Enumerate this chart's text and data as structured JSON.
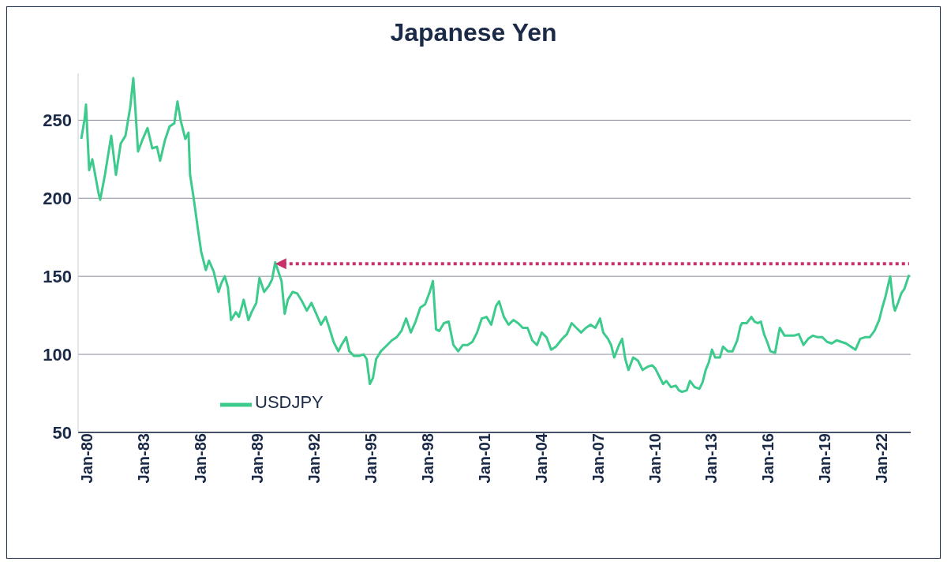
{
  "chart_data": {
    "type": "line",
    "title": "Japanese Yen",
    "x": [
      "1980-01",
      "1980-03",
      "1980-04",
      "1980-06",
      "1980-08",
      "1980-12",
      "1981-01",
      "1981-04",
      "1981-08",
      "1981-11",
      "1982-02",
      "1982-05",
      "1982-08",
      "1982-10",
      "1982-11",
      "1983-01",
      "1983-04",
      "1983-07",
      "1983-10",
      "1984-01",
      "1984-03",
      "1984-06",
      "1984-09",
      "1984-12",
      "1985-02",
      "1985-04",
      "1985-07",
      "1985-09",
      "1985-10",
      "1985-12",
      "1986-03",
      "1986-05",
      "1986-08",
      "1986-10",
      "1987-01",
      "1987-04",
      "1987-06",
      "1987-08",
      "1987-10",
      "1987-12",
      "1988-03",
      "1988-05",
      "1988-08",
      "1988-11",
      "1989-01",
      "1989-04",
      "1989-06",
      "1989-09",
      "1989-12",
      "1990-02",
      "1990-04",
      "1990-06",
      "1990-08",
      "1990-10",
      "1990-12",
      "1991-03",
      "1991-06",
      "1991-09",
      "1991-12",
      "1992-03",
      "1992-06",
      "1992-09",
      "1992-12",
      "1993-02",
      "1993-05",
      "1993-08",
      "1993-10",
      "1994-01",
      "1994-03",
      "1994-06",
      "1994-09",
      "1994-12",
      "1995-02",
      "1995-04",
      "1995-06",
      "1995-08",
      "1995-11",
      "1996-02",
      "1996-06",
      "1996-09",
      "1996-12",
      "1997-03",
      "1997-06",
      "1997-09",
      "1997-12",
      "1998-03",
      "1998-06",
      "1998-08",
      "1998-10",
      "1998-12",
      "1999-03",
      "1999-06",
      "1999-09",
      "1999-12",
      "2000-03",
      "2000-06",
      "2000-09",
      "2000-12",
      "2001-03",
      "2001-06",
      "2001-09",
      "2001-12",
      "2002-02",
      "2002-05",
      "2002-08",
      "2002-11",
      "2003-02",
      "2003-05",
      "2003-08",
      "2003-11",
      "2004-02",
      "2004-05",
      "2004-08",
      "2004-11",
      "2005-02",
      "2005-06",
      "2005-09",
      "2005-12",
      "2006-03",
      "2006-06",
      "2006-09",
      "2006-12",
      "2007-03",
      "2007-06",
      "2007-08",
      "2007-11",
      "2008-01",
      "2008-03",
      "2008-06",
      "2008-08",
      "2008-10",
      "2008-12",
      "2009-03",
      "2009-06",
      "2009-09",
      "2009-12",
      "2010-03",
      "2010-05",
      "2010-08",
      "2010-10",
      "2010-12",
      "2011-03",
      "2011-06",
      "2011-08",
      "2011-10",
      "2012-01",
      "2012-03",
      "2012-06",
      "2012-09",
      "2012-11",
      "2013-01",
      "2013-03",
      "2013-05",
      "2013-07",
      "2013-10",
      "2013-12",
      "2014-03",
      "2014-06",
      "2014-09",
      "2014-11",
      "2014-12",
      "2015-03",
      "2015-06",
      "2015-08",
      "2015-10",
      "2015-12",
      "2016-02",
      "2016-04",
      "2016-06",
      "2016-09",
      "2016-11",
      "2016-12",
      "2017-03",
      "2017-06",
      "2017-09",
      "2017-12",
      "2018-03",
      "2018-06",
      "2018-09",
      "2018-12",
      "2019-03",
      "2019-06",
      "2019-09",
      "2019-12",
      "2020-03",
      "2020-06",
      "2020-09",
      "2020-12",
      "2021-03",
      "2021-06",
      "2021-09",
      "2021-12",
      "2022-03",
      "2022-05",
      "2022-07",
      "2022-10",
      "2022-12",
      "2023-01",
      "2023-03",
      "2023-05",
      "2023-07",
      "2023-09",
      "2023-10"
    ],
    "series": [
      {
        "name": "USDJPY",
        "color": "#3ccb8c",
        "values": [
          238,
          250,
          260,
          218,
          225,
          203,
          199,
          215,
          240,
          215,
          235,
          240,
          258,
          277,
          262,
          230,
          238,
          245,
          232,
          233,
          224,
          237,
          246,
          248,
          262,
          250,
          238,
          242,
          215,
          202,
          180,
          166,
          154,
          160,
          153,
          140,
          146,
          150,
          143,
          122,
          127,
          124,
          135,
          122,
          127,
          133,
          149,
          140,
          144,
          148,
          159,
          153,
          147,
          126,
          135,
          140,
          139,
          134,
          128,
          133,
          126,
          119,
          124,
          118,
          108,
          102,
          106,
          111,
          102,
          99,
          99,
          100,
          97,
          81,
          85,
          97,
          102,
          105,
          109,
          111,
          115,
          123,
          114,
          121,
          130,
          132,
          140,
          147,
          116,
          115,
          120,
          121,
          106,
          102,
          106,
          106,
          108,
          114,
          123,
          124,
          119,
          131,
          134,
          124,
          119,
          122,
          120,
          117,
          117,
          109,
          106,
          114,
          111,
          103,
          105,
          110,
          113,
          120,
          117,
          114,
          117,
          119,
          117,
          123,
          114,
          110,
          106,
          98,
          106,
          110,
          97,
          90,
          98,
          96,
          90,
          92,
          93,
          91,
          85,
          81,
          83,
          79,
          80,
          77,
          76,
          77,
          83,
          79,
          78,
          82,
          90,
          95,
          103,
          98,
          98,
          105,
          102,
          102,
          109,
          118,
          120,
          120,
          124,
          121,
          120,
          121,
          113,
          108,
          102,
          101,
          112,
          117,
          112,
          112,
          112,
          113,
          106,
          110,
          112,
          111,
          111,
          108,
          107,
          109,
          108,
          107,
          105,
          103,
          110,
          111,
          111,
          115,
          122,
          130,
          137,
          150,
          132,
          128,
          133,
          139,
          142,
          148,
          151
        ]
      }
    ],
    "xlim": [
      "1979-11",
      "2023-11"
    ],
    "xticks": [
      {
        "value": "1980-01",
        "label": "Jan-80"
      },
      {
        "value": "1983-01",
        "label": "Jan-83"
      },
      {
        "value": "1986-01",
        "label": "Jan-86"
      },
      {
        "value": "1989-01",
        "label": "Jan-89"
      },
      {
        "value": "1992-01",
        "label": "Jan-92"
      },
      {
        "value": "1995-01",
        "label": "Jan-95"
      },
      {
        "value": "1998-01",
        "label": "Jan-98"
      },
      {
        "value": "2001-01",
        "label": "Jan-01"
      },
      {
        "value": "2004-01",
        "label": "Jan-04"
      },
      {
        "value": "2007-01",
        "label": "Jan-07"
      },
      {
        "value": "2010-01",
        "label": "Jan-10"
      },
      {
        "value": "2013-01",
        "label": "Jan-13"
      },
      {
        "value": "2016-01",
        "label": "Jan-16"
      },
      {
        "value": "2019-01",
        "label": "Jan-19"
      },
      {
        "value": "2022-01",
        "label": "Jan-22"
      }
    ],
    "ylim": [
      50,
      280
    ],
    "yticks": [
      50,
      100,
      150,
      200,
      250
    ],
    "ref_lines": [
      {
        "axis": "y",
        "value": 158,
        "color": "#c8306a",
        "line_style": "dotted"
      }
    ],
    "grid": "y",
    "legend": "bottom left",
    "marker": "none",
    "line_style": "solid"
  }
}
